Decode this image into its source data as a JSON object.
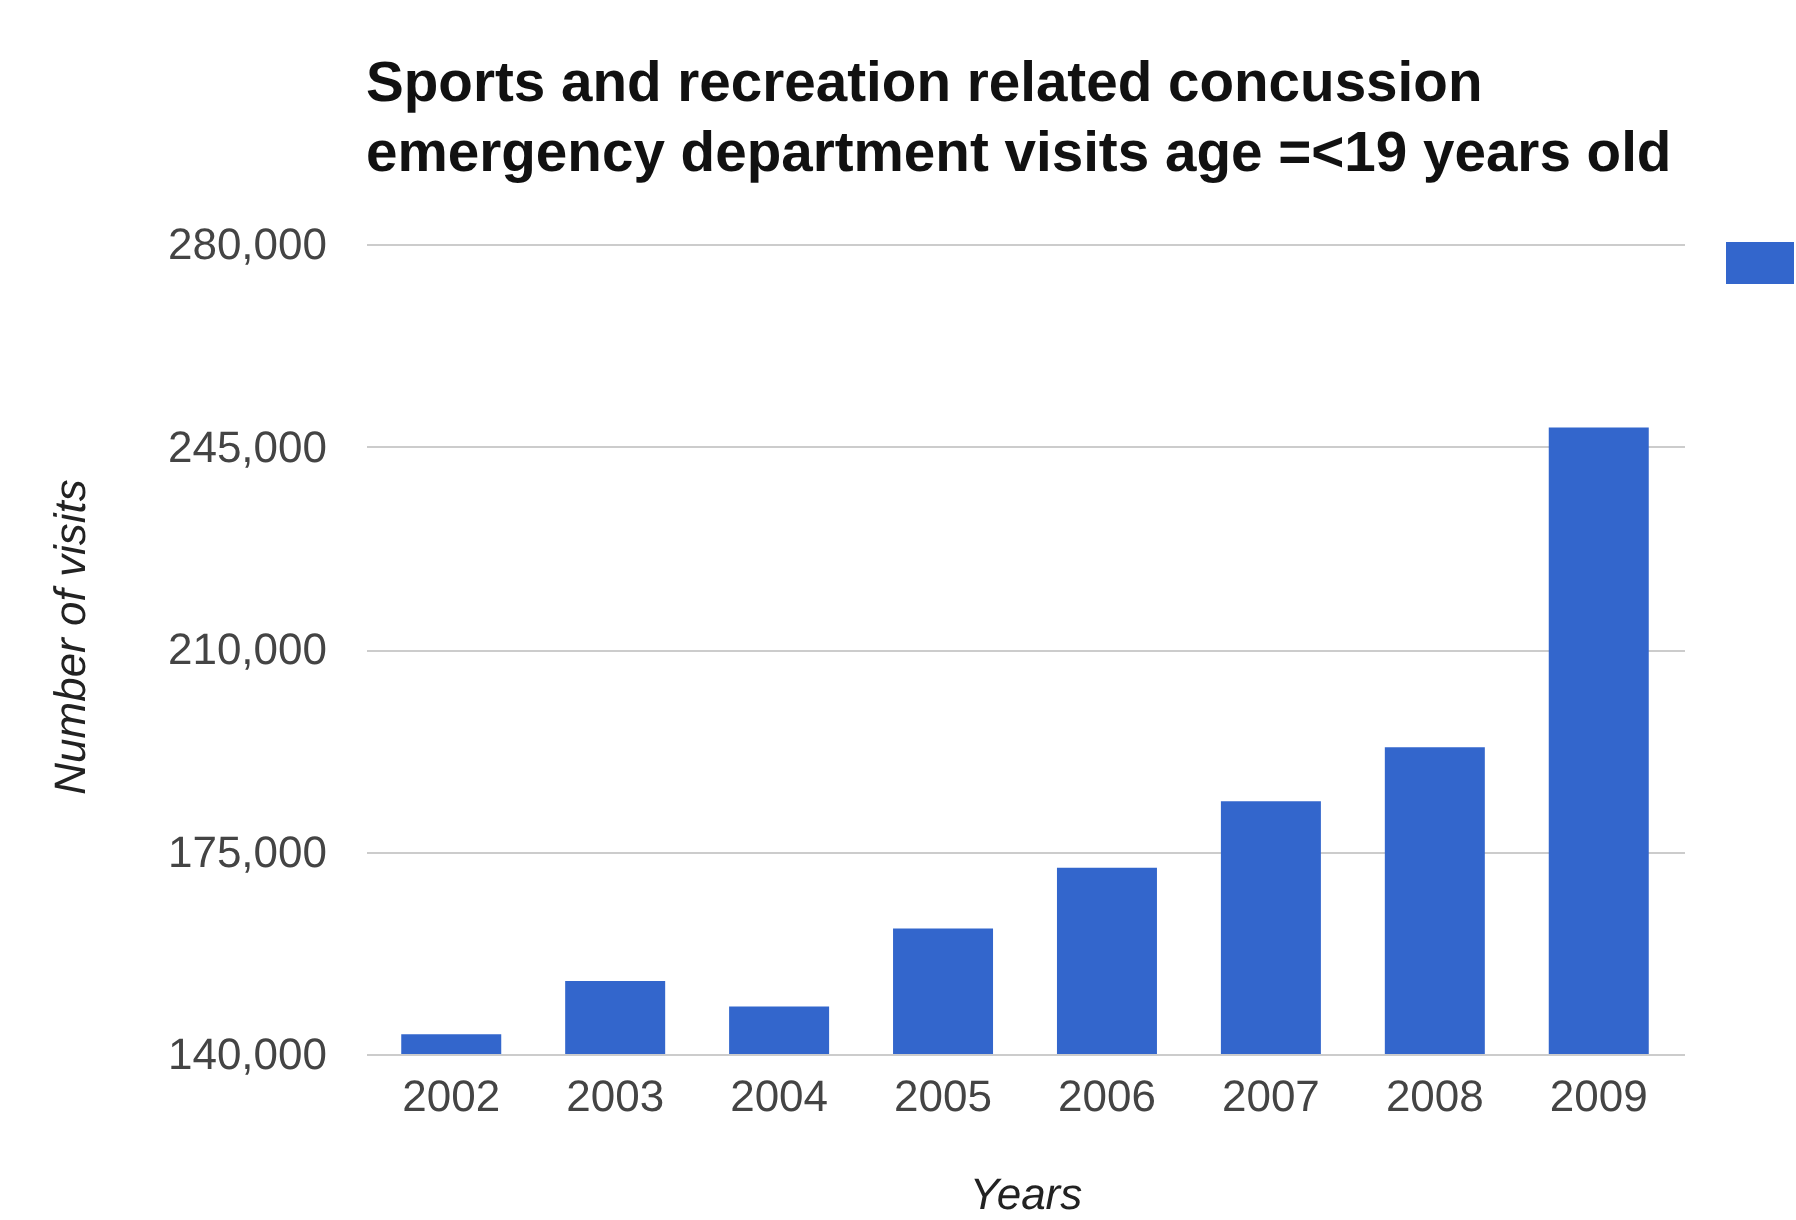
{
  "chart_data": {
    "type": "bar",
    "title": "Sports and recreation related concussion emergency department visits age =<19 years old",
    "xlabel": "Years",
    "ylabel": "Number of visits",
    "categories": [
      "2002",
      "2003",
      "2004",
      "2005",
      "2006",
      "2007",
      "2008",
      "2009"
    ],
    "values": [
      143400,
      152600,
      148200,
      161700,
      172200,
      183700,
      193000,
      248300
    ],
    "color": "#3366cc",
    "ylim": [
      140000,
      280000
    ],
    "yticks": [
      {
        "value": 140000,
        "label": "140,000"
      },
      {
        "value": 175000,
        "label": "175,000"
      },
      {
        "value": 210000,
        "label": "210,000"
      },
      {
        "value": 245000,
        "label": "245,000"
      },
      {
        "value": 280000,
        "label": "280,000"
      }
    ],
    "grid": "y"
  }
}
